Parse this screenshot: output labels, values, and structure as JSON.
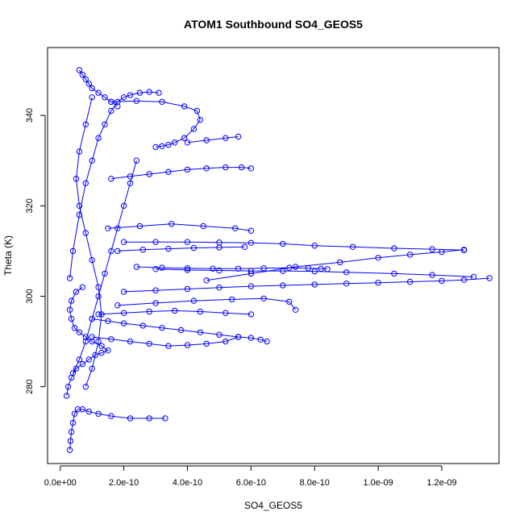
{
  "chart_data": {
    "type": "scatter",
    "title": "ATOM1 Southbound SO4_GEOS5",
    "xlabel": "SO4_GEOS5",
    "ylabel": "Theta (K)",
    "xlim": [
      -4e-11,
      1.38e-09
    ],
    "ylim": [
      263,
      355
    ],
    "x_ticks": [
      0,
      2e-10,
      4e-10,
      6e-10,
      8e-10,
      1e-09,
      1.2e-09
    ],
    "x_tick_labels": [
      "0.0e+00",
      "2.0e-10",
      "4.0e-10",
      "6.0e-10",
      "8.0e-10",
      "1.0e-09",
      "1.2e-09"
    ],
    "y_ticks": [
      280,
      300,
      320,
      340
    ],
    "y_tick_labels": [
      "280",
      "300",
      "320",
      "340"
    ],
    "marker": "open-circle",
    "connected": true,
    "grid": false,
    "legend": "none",
    "series_color": "#0000ff",
    "series": [
      {
        "x": [
          3e-11,
          3.2e-11,
          3.5e-11,
          4e-11,
          4.5e-11,
          5.5e-11,
          7e-11,
          9e-11,
          1.2e-10,
          1.6e-10,
          2.2e-10,
          2.8e-10,
          3.3e-10
        ],
        "y": [
          266,
          268,
          270,
          272,
          274,
          275,
          275,
          274.5,
          274,
          273.5,
          273,
          273,
          273
        ]
      },
      {
        "x": [
          2e-11,
          2.5e-11,
          3.5e-11,
          5e-11,
          7e-11,
          9e-11,
          1.1e-10,
          1.3e-10,
          1.5e-10,
          1.3e-10,
          1e-10,
          8e-11,
          6e-11,
          4.5e-11,
          3.5e-11,
          3e-11,
          3.5e-11,
          5e-11,
          7e-11
        ],
        "y": [
          278,
          280,
          282,
          284,
          285,
          286,
          287,
          287.5,
          288,
          289,
          290,
          291,
          292,
          293,
          295,
          297,
          299,
          301,
          302
        ]
      },
      {
        "x": [
          1e-10,
          1.5e-10,
          2e-10,
          2.6e-10,
          3.2e-10,
          3.8e-10,
          4.4e-10,
          5e-10,
          5.6e-10,
          6e-10,
          6.3e-10,
          6.5e-10
        ],
        "y": [
          295,
          294.5,
          294,
          293.5,
          293,
          292.5,
          292,
          291.5,
          291,
          290.8,
          290.4,
          290
        ]
      },
      {
        "x": [
          1.2e-10,
          2e-10,
          2.8e-10,
          3.6e-10,
          4.4e-10,
          5.2e-10,
          6e-10
        ],
        "y": [
          296,
          296.3,
          296.6,
          296.8,
          296.6,
          296.3,
          296
        ]
      },
      {
        "x": [
          1e-10,
          1.6e-10,
          2.2e-10,
          2.8e-10,
          3.4e-10,
          4e-10,
          4.6e-10,
          5.2e-10,
          5.6e-10
        ],
        "y": [
          291,
          290.5,
          290,
          289.5,
          289,
          289.2,
          289.5,
          290,
          291
        ]
      },
      {
        "x": [
          1.8e-10,
          3e-10,
          4.2e-10,
          5.4e-10,
          6.4e-10,
          7.2e-10,
          7.4e-10
        ],
        "y": [
          298,
          298.5,
          299,
          299.3,
          299.5,
          298.8,
          297
        ]
      },
      {
        "x": [
          2e-10,
          3e-10,
          4e-10,
          5e-10,
          6e-10,
          7e-10,
          8e-10,
          9e-10,
          1e-09,
          1.1e-09,
          1.2e-09,
          1.27e-09,
          1.35e-09
        ],
        "y": [
          301,
          301.3,
          301.6,
          301.9,
          302.2,
          302.4,
          302.6,
          302.8,
          303,
          303.2,
          303.4,
          303.6,
          304
        ]
      },
      {
        "x": [
          3e-10,
          4e-10,
          5e-10,
          6e-10,
          7e-10,
          8e-10,
          9e-10,
          1.05e-09,
          1.17e-09,
          1.3e-09
        ],
        "y": [
          306,
          305.8,
          305.7,
          305.6,
          305.6,
          305.5,
          305.3,
          305,
          304.7,
          304.3
        ]
      },
      {
        "x": [
          2.4e-10,
          3.2e-10,
          4e-10,
          4.8e-10,
          5.6e-10,
          6.4e-10,
          7.2e-10,
          7.8e-10,
          8.2e-10,
          8.4e-10
        ],
        "y": [
          306.5,
          306.3,
          306.2,
          306.1,
          306.1,
          306.2,
          306.3,
          306.2,
          306.1,
          306
        ]
      },
      {
        "x": [
          4.6e-10,
          6e-10,
          7.4e-10,
          8.8e-10,
          1e-09,
          1.1e-09,
          1.2e-09,
          1.27e-09
        ],
        "y": [
          303.5,
          305,
          306.5,
          307.5,
          308.5,
          309.2,
          309.8,
          310.3
        ]
      },
      {
        "x": [
          1.8e-10,
          2.6e-10,
          3.4e-10,
          4.2e-10,
          5e-10,
          5.8e-10
        ],
        "y": [
          310,
          310.3,
          310.5,
          310.7,
          310.8,
          310.9
        ]
      },
      {
        "x": [
          2e-10,
          3e-10,
          4e-10,
          5e-10,
          6e-10,
          7e-10,
          8e-10,
          9.2e-10,
          1.05e-09,
          1.17e-09,
          1.27e-09
        ],
        "y": [
          312,
          312,
          312,
          311.9,
          311.8,
          311.6,
          311.2,
          310.9,
          310.6,
          310.4,
          310.2
        ]
      },
      {
        "x": [
          1.5e-10,
          2.5e-10,
          3.5e-10,
          4.5e-10,
          5.5e-10,
          6e-10
        ],
        "y": [
          315,
          315.5,
          316,
          315.5,
          315,
          314.5
        ]
      },
      {
        "x": [
          1.6e-10,
          2.2e-10,
          2.8e-10,
          3.4e-10,
          4e-10,
          4.6e-10,
          5.2e-10,
          5.7e-10,
          6e-10
        ],
        "y": [
          326,
          326.5,
          327,
          327.5,
          328,
          328.3,
          328.5,
          328.5,
          328.3
        ]
      },
      {
        "x": [
          1.6e-10,
          2.4e-10,
          3.2e-10,
          3.9e-10,
          4.3e-10,
          4.4e-10,
          4.2e-10,
          3.9e-10,
          3.6e-10,
          3.4e-10,
          3.2e-10,
          3e-10
        ],
        "y": [
          343,
          343.2,
          343,
          342,
          341,
          339,
          337,
          335,
          334,
          333.5,
          333.2,
          333
        ]
      },
      {
        "x": [
          3e-11,
          4e-11,
          6e-11,
          8e-11,
          1e-10,
          1.2e-10,
          1.4e-10,
          1.6e-10,
          1.8e-10,
          2e-10,
          2.2e-10,
          2.5e-10,
          2.8e-10,
          3.1e-10
        ],
        "y": [
          304,
          310,
          318,
          325,
          330,
          335,
          338,
          341,
          343,
          344,
          344.5,
          345,
          345.2,
          345
        ]
      },
      {
        "x": [
          6e-11,
          7e-11,
          8e-11,
          9e-11,
          1e-10,
          1.2e-10,
          1.4e-10,
          1.6e-10,
          1.8e-10
        ],
        "y": [
          350,
          349,
          348,
          347,
          346,
          345,
          344,
          343,
          342
        ]
      },
      {
        "x": [
          4e-11,
          6e-11,
          8e-11,
          1e-10,
          1.2e-10,
          1.4e-10,
          1.6e-10,
          1.8e-10,
          2e-10,
          2.2e-10,
          2.4e-10
        ],
        "y": [
          283,
          286,
          290,
          295,
          300,
          305,
          310,
          315,
          320,
          325,
          330
        ]
      },
      {
        "x": [
          8e-11,
          1e-10,
          1.2e-10,
          1.3e-10,
          1.2e-10,
          1e-10,
          8e-11,
          6e-11,
          5e-11,
          6e-11,
          8e-11,
          1e-10
        ],
        "y": [
          280,
          284,
          290,
          296,
          302,
          308,
          314,
          320,
          326,
          332,
          338,
          344
        ]
      },
      {
        "x": [
          4e-10,
          4.6e-10,
          5.2e-10,
          5.6e-10
        ],
        "y": [
          334,
          334.5,
          335,
          335.3
        ]
      }
    ]
  }
}
